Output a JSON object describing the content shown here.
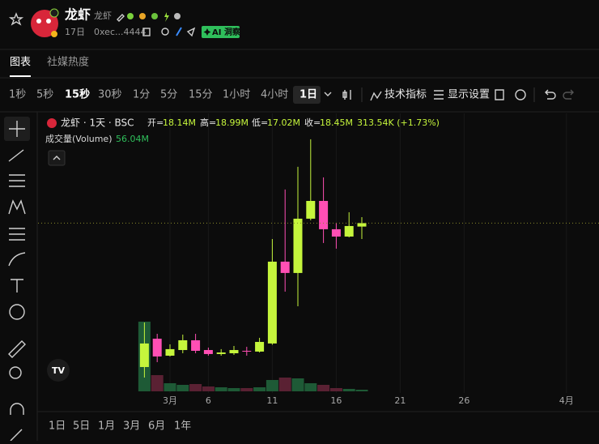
{
  "header": {
    "title": "龙虾",
    "subtitle": "龙虾",
    "age": "17日",
    "address": "0xec...4444",
    "ai_badge": "AI 洞察"
  },
  "tabs": [
    "图表",
    "社媒热度"
  ],
  "intervals": [
    "1秒",
    "5秒",
    "15秒",
    "30秒",
    "1分",
    "5分",
    "15分",
    "1小时",
    "4小时",
    "1日"
  ],
  "tools": [
    "技术指标",
    "显示设置"
  ],
  "legend": {
    "name": "龙虾 · 1天 · BSC",
    "ohlc": [
      {
        "label": "开=",
        "value": "18.14M"
      },
      {
        "label": "高=",
        "value": "18.99M"
      },
      {
        "label": "低=",
        "value": "17.02M"
      },
      {
        "label": "收=",
        "value": "18.45M"
      }
    ],
    "change": "313.54K (+1.73%)",
    "volume_name": "成交量(Volume)",
    "volume_value": "56.04M"
  },
  "ranges": [
    "1日",
    "5日",
    "1月",
    "3月",
    "6月",
    "1年"
  ],
  "chart_data": {
    "type": "candlestick",
    "categories": [
      null,
      null,
      "3月",
      null,
      null,
      "6",
      null,
      null,
      null,
      null,
      "11",
      null,
      null,
      null,
      null,
      "16",
      null,
      null,
      null,
      null,
      "21",
      null,
      null,
      null,
      null,
      "26",
      null,
      null,
      null,
      null,
      null,
      null,
      null,
      "4月"
    ],
    "open": [
      5.49,
      8.04,
      6.51,
      7.02,
      7.9,
      7.02,
      6.66,
      6.73,
      6.95,
      6.88,
      7.61,
      14.98,
      13.96,
      18.85,
      20.45,
      17.9,
      17.24,
      18.14,
      null,
      null,
      null,
      null,
      null,
      null,
      null,
      null,
      null,
      null,
      null,
      null,
      null,
      null,
      null,
      null
    ],
    "high": [
      9.5,
      8.48,
      7.53,
      8.41,
      8.48,
      7.24,
      7.1,
      7.39,
      7.31,
      8.12,
      17.02,
      21.48,
      23.52,
      26.0,
      22.57,
      18.48,
      19.43,
      18.99,
      null,
      null,
      null,
      null,
      null,
      null,
      null,
      null,
      null,
      null,
      null,
      null,
      null,
      null,
      null,
      null
    ],
    "low": [
      4.54,
      5.93,
      6.44,
      6.73,
      6.73,
      6.51,
      6.51,
      6.58,
      6.51,
      6.8,
      7.5,
      12.28,
      10.96,
      18.7,
      16.66,
      16.15,
      17.17,
      17.02,
      null,
      null,
      null,
      null,
      null,
      null,
      null,
      null,
      null,
      null,
      null,
      null,
      null,
      null,
      null,
      null
    ],
    "close": [
      7.61,
      6.44,
      7.1,
      7.9,
      6.95,
      6.66,
      6.8,
      7.02,
      6.88,
      7.75,
      14.98,
      13.96,
      18.85,
      20.45,
      17.9,
      17.24,
      18.19,
      18.45,
      null,
      null,
      null,
      null,
      null,
      null,
      null,
      null,
      null,
      null,
      null,
      null,
      null,
      null,
      null,
      null
    ],
    "volume": [
      2408,
      560,
      280,
      224,
      252,
      168,
      140,
      112,
      112,
      140,
      392,
      476,
      448,
      280,
      224,
      112,
      84,
      56.04,
      null,
      null,
      null,
      null,
      null,
      null,
      null,
      null,
      null,
      null,
      null,
      null,
      null,
      null,
      null,
      null
    ],
    "ylim": [
      3.3,
      27.6
    ],
    "volume_lim": [
      0,
      2800
    ],
    "up_color": "#c5f53c",
    "down_color": "#ff4fb4",
    "volume_up_color": "#1e5a36",
    "volume_down_color": "#5a2133",
    "last_price_line": true,
    "grid": true
  }
}
